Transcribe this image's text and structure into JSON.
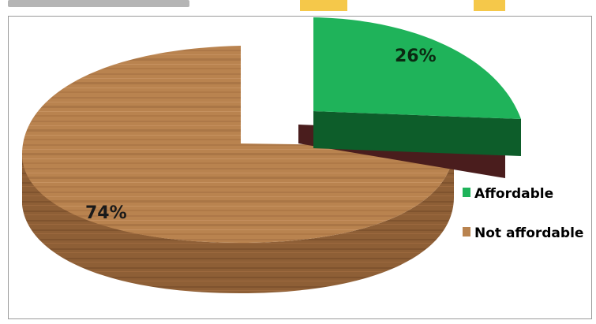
{
  "chart_data": {
    "type": "pie",
    "slices": [
      {
        "label": "Affordable",
        "value": 26,
        "data_label": "26%",
        "color": "#1fb35a",
        "side_color": "#0d5d2a"
      },
      {
        "label": "Not affordable",
        "value": 74,
        "data_label": "74%",
        "color": "#b9834f",
        "side_color": "#8a5c33"
      }
    ],
    "extra_shadow_color": "#4a1d1d",
    "legend": {
      "placement": "right"
    },
    "style": "3d-exploded"
  }
}
